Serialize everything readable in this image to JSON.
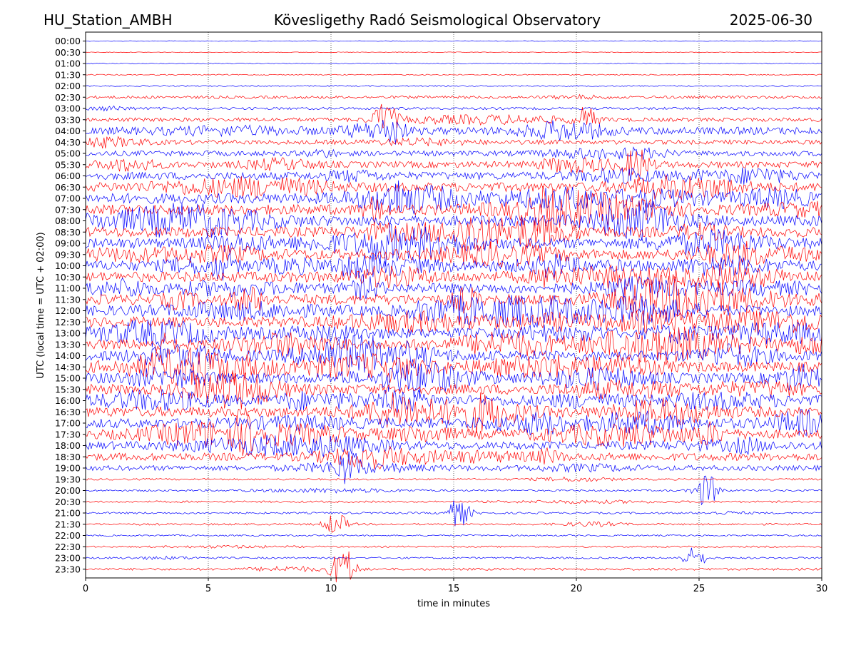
{
  "header": {
    "station": "HU_Station_AMBH",
    "title": "Kövesligethy Radó Seismological Observatory",
    "date": "2025-06-30"
  },
  "chart_data": {
    "type": "line",
    "chart_kind": "helicorder",
    "xlabel": "time in minutes",
    "ylabel": "UTC (local time = UTC + 02:00)",
    "xlim": [
      0,
      30
    ],
    "x_ticks": [
      "0",
      "5",
      "10",
      "15",
      "20",
      "25",
      "30"
    ],
    "row_labels": [
      "00:00",
      "00:30",
      "01:00",
      "01:30",
      "02:00",
      "02:30",
      "03:00",
      "03:30",
      "04:00",
      "04:30",
      "05:00",
      "05:30",
      "06:00",
      "06:30",
      "07:00",
      "07:30",
      "08:00",
      "08:30",
      "09:00",
      "09:30",
      "10:00",
      "10:30",
      "11:00",
      "11:30",
      "12:00",
      "12:30",
      "13:00",
      "13:30",
      "14:00",
      "14:30",
      "15:00",
      "15:30",
      "16:00",
      "16:30",
      "17:00",
      "17:30",
      "18:00",
      "18:30",
      "19:00",
      "19:30",
      "20:00",
      "20:30",
      "21:00",
      "21:30",
      "22:00",
      "22:30",
      "23:00",
      "23:30"
    ],
    "row_colors": [
      "#0000ff",
      "#ff0000"
    ],
    "row_amplitude_level": [
      0.6,
      0.5,
      0.6,
      0.8,
      1,
      2.2,
      2,
      3,
      6,
      3.5,
      4,
      5,
      6,
      7,
      8,
      8,
      8,
      8,
      8,
      8,
      8,
      8,
      8,
      8,
      8,
      8,
      8,
      8,
      8,
      8,
      8,
      8,
      8,
      8,
      7.5,
      7,
      6,
      6,
      4,
      1.5,
      1.5,
      1.5,
      1.5,
      1.5,
      1.2,
      1.3,
      1.4,
      1.8
    ],
    "events": [
      {
        "row": "03:30",
        "minute": 12.2,
        "strength": 3
      },
      {
        "row": "04:00",
        "minute": 12.5,
        "strength": 2
      },
      {
        "row": "03:30",
        "minute": 20.4,
        "strength": 2
      },
      {
        "row": "05:30",
        "minute": 22.5,
        "strength": 2.5
      },
      {
        "row": "07:30",
        "minute": 11.8,
        "strength": 2
      },
      {
        "row": "10:00",
        "minute": 5.6,
        "strength": 2
      },
      {
        "row": "10:00",
        "minute": 19.0,
        "strength": 1.5
      },
      {
        "row": "15:00",
        "minute": 12.5,
        "strength": 1.5
      },
      {
        "row": "17:30",
        "minute": 6.5,
        "strength": 1.5
      },
      {
        "row": "19:00",
        "minute": 10.7,
        "strength": 2.5
      },
      {
        "row": "20:00",
        "minute": 25.3,
        "strength": 3
      },
      {
        "row": "21:00",
        "minute": 15.2,
        "strength": 2.5
      },
      {
        "row": "21:30",
        "minute": 10.2,
        "strength": 2
      },
      {
        "row": "23:00",
        "minute": 24.8,
        "strength": 1.8
      },
      {
        "row": "23:30",
        "minute": 10.5,
        "strength": 4
      }
    ]
  }
}
